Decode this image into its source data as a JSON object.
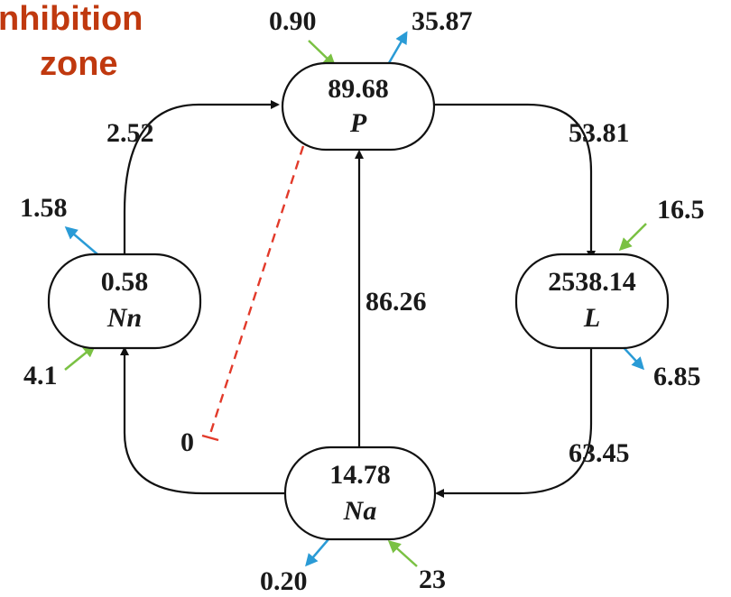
{
  "title": {
    "line1": "nhibition",
    "line2": "zone"
  },
  "colors": {
    "inflow": "#7ac143",
    "outflow": "#2a9bd6",
    "inhibition": "#e23a2a",
    "flow": "#111111",
    "title": "#c0390f"
  },
  "nodes": {
    "P": {
      "value": "89.68",
      "name": "P"
    },
    "Nn": {
      "value": "0.58",
      "name": "Nn"
    },
    "L": {
      "value": "2538.14",
      "name": "L"
    },
    "Na": {
      "value": "14.78",
      "name": "Na"
    }
  },
  "flows": {
    "nn_to_p": "2.52",
    "p_to_l": "53.81",
    "na_to_p": "86.26",
    "l_to_na": "63.45",
    "inhibition_na_p": "0"
  },
  "external": {
    "p_in": "0.90",
    "p_out": "35.87",
    "nn_out": "1.58",
    "nn_in": "4.1",
    "l_in": "16.5",
    "l_out": "6.85",
    "na_out": "0.20",
    "na_in": "23"
  }
}
